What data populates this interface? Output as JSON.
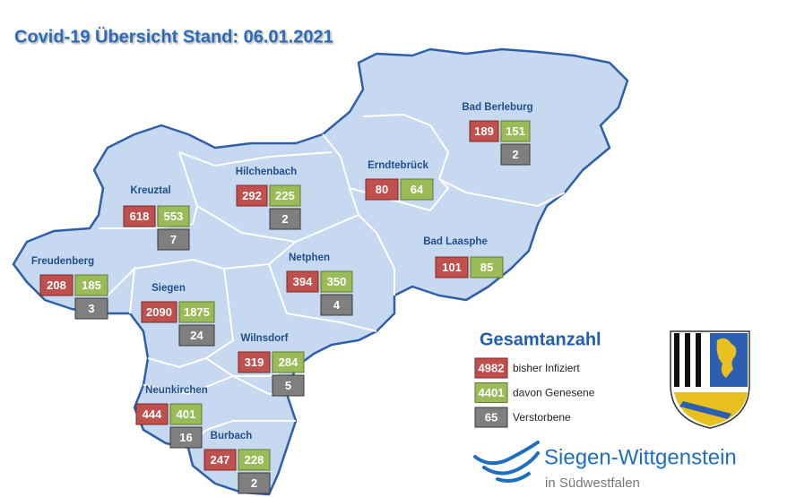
{
  "title": "Covid-19 Übersicht Stand: 06.01.2021",
  "municipalities": [
    {
      "name": "Bad Berleburg",
      "infected": 189,
      "recovered": 151,
      "deaths": 2
    },
    {
      "name": "Erndtebrück",
      "infected": 80,
      "recovered": 64
    },
    {
      "name": "Hilchenbach",
      "infected": 292,
      "recovered": 225,
      "deaths": 2
    },
    {
      "name": "Kreuztal",
      "infected": 618,
      "recovered": 553,
      "deaths": 7
    },
    {
      "name": "Bad Laasphe",
      "infected": 101,
      "recovered": 85
    },
    {
      "name": "Freudenberg",
      "infected": 208,
      "recovered": 185,
      "deaths": 3
    },
    {
      "name": "Netphen",
      "infected": 394,
      "recovered": 350,
      "deaths": 4
    },
    {
      "name": "Siegen",
      "infected": 2090,
      "recovered": 1875,
      "deaths": 24
    },
    {
      "name": "Wilnsdorf",
      "infected": 319,
      "recovered": 284,
      "deaths": 5
    },
    {
      "name": "Neunkirchen",
      "infected": 444,
      "recovered": 401,
      "deaths": 16
    },
    {
      "name": "Burbach",
      "infected": 247,
      "recovered": 228,
      "deaths": 2
    }
  ],
  "legend": {
    "title": "Gesamtanzahl",
    "items": [
      {
        "value": 4982,
        "label": "bisher Infiziert"
      },
      {
        "value": 4401,
        "label": "davon Genesene"
      },
      {
        "value": 65,
        "label": "Verstorbene"
      }
    ]
  },
  "logo": {
    "name": "Siegen-Wittgenstein",
    "subtitle": "in Südwestfalen"
  }
}
